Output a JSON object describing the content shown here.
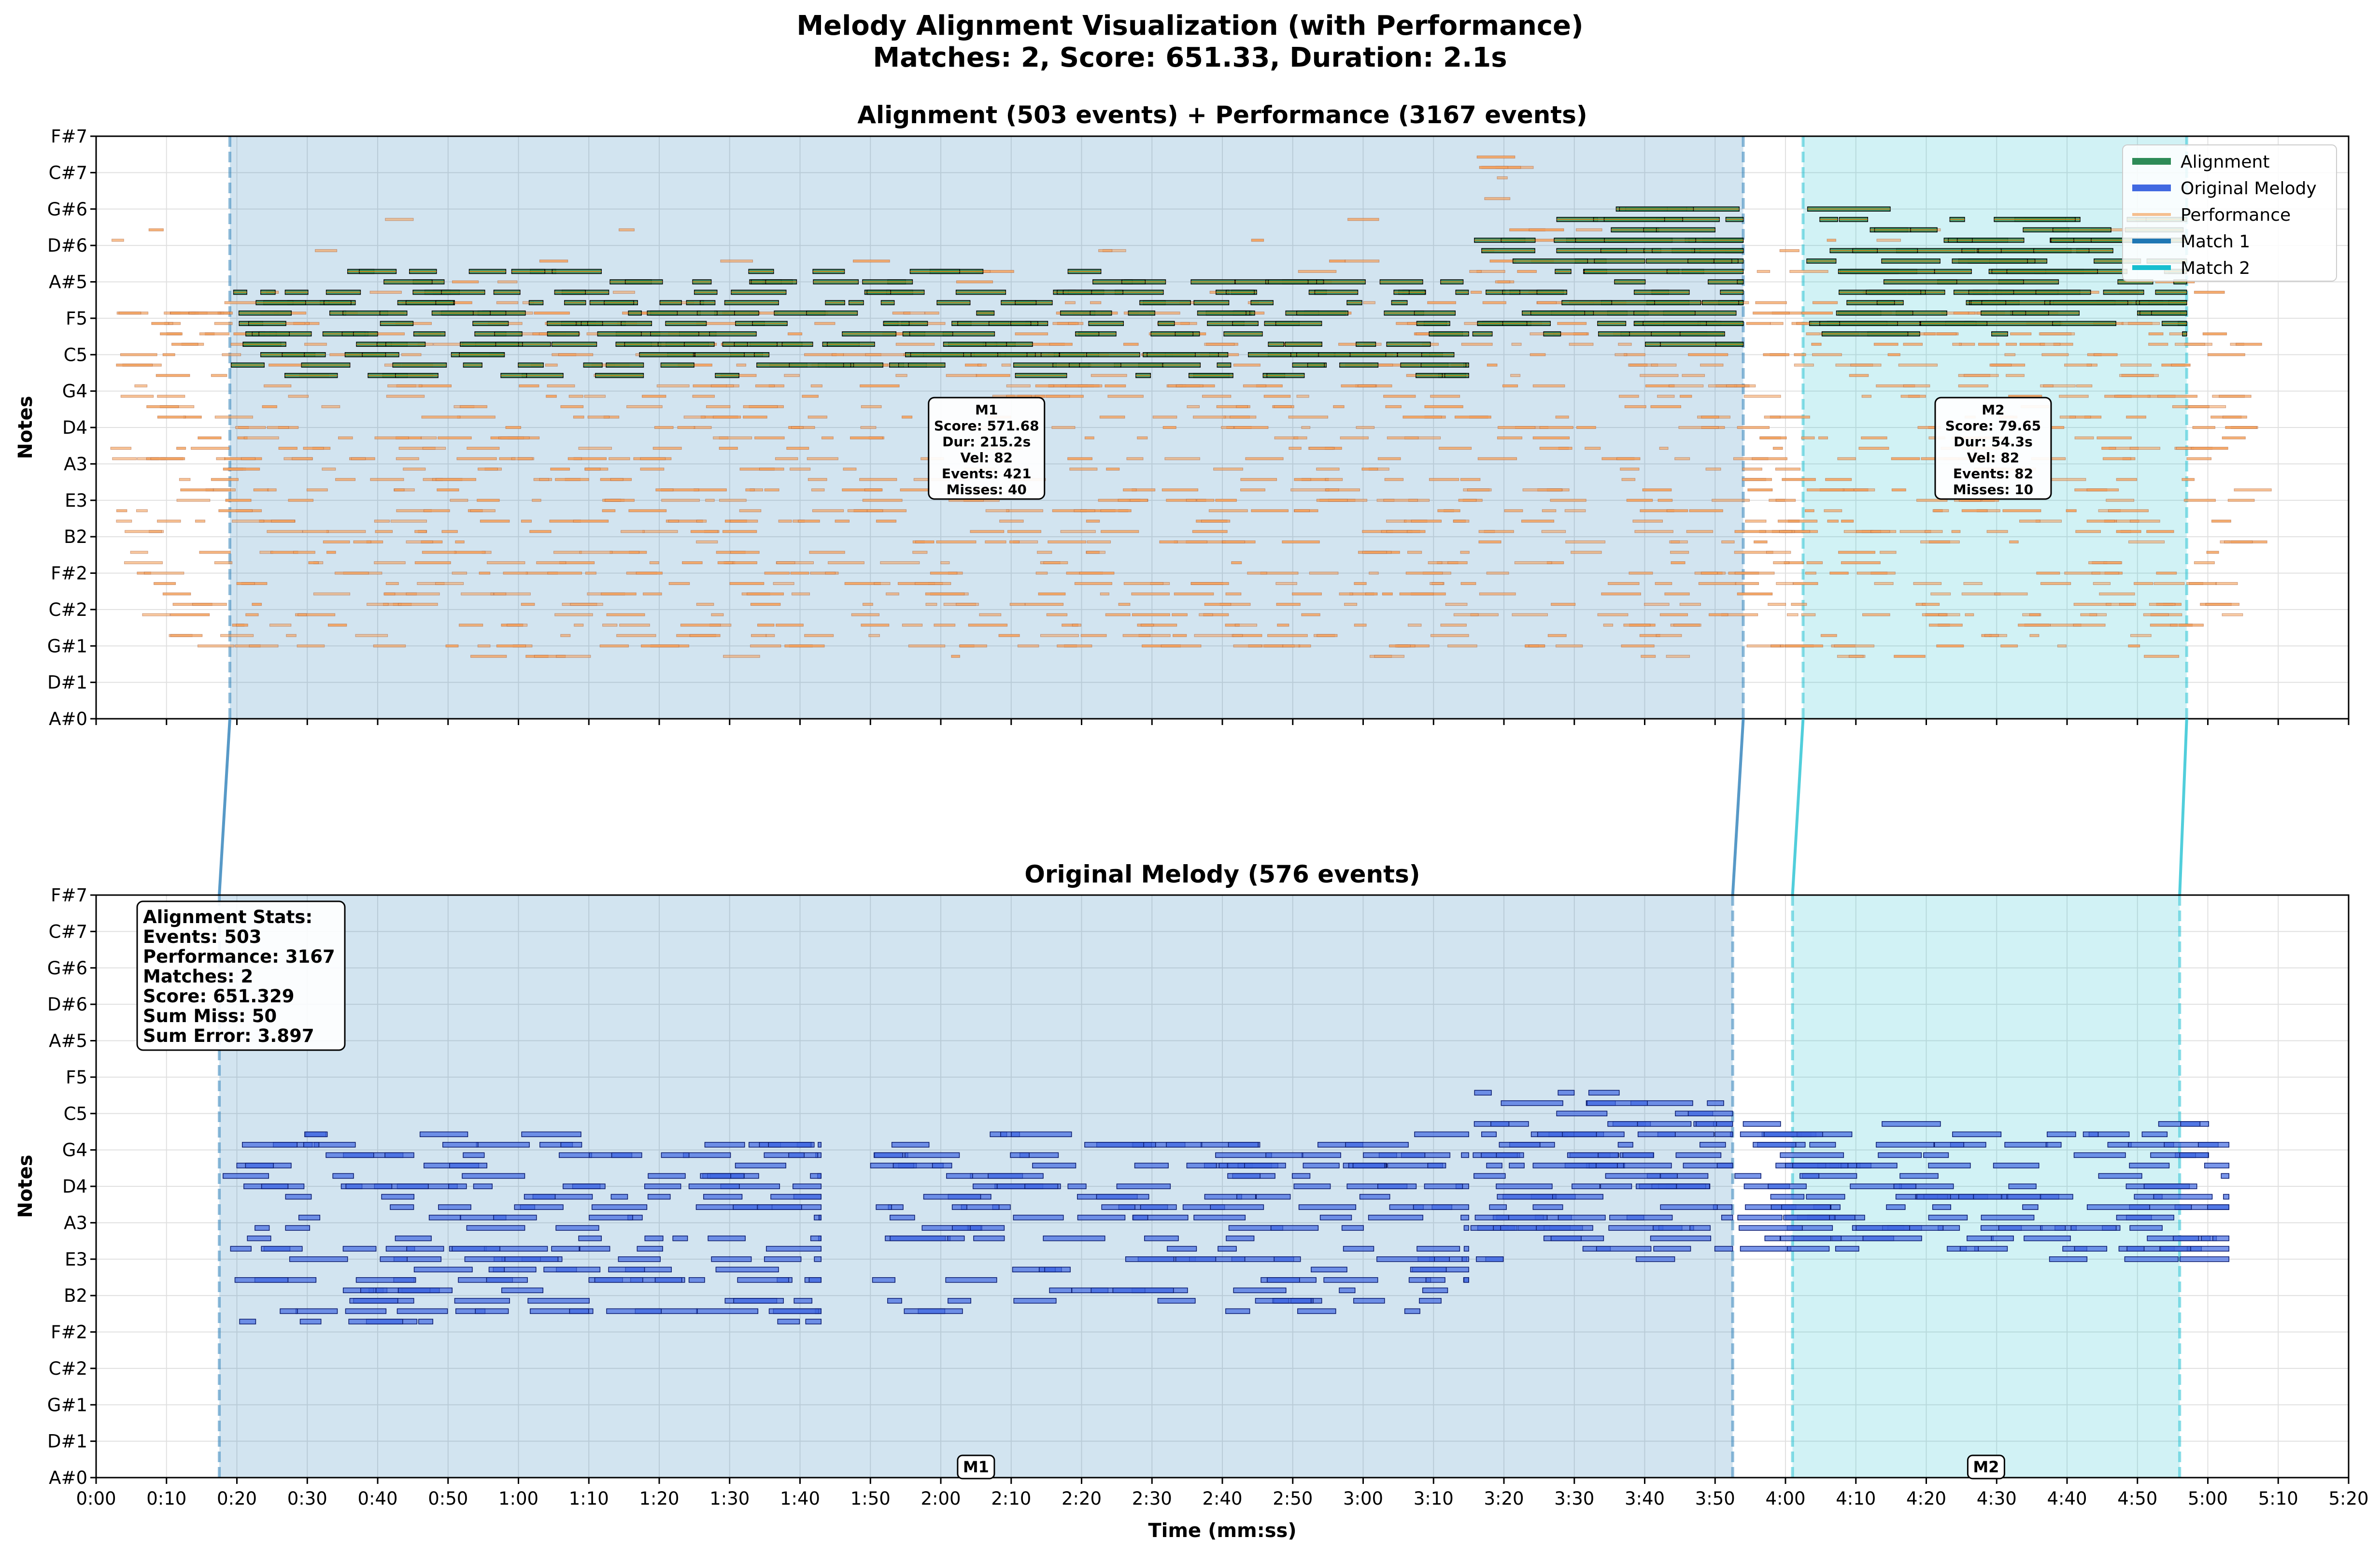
{
  "figure": {
    "title_line1": "Melody Alignment Visualization (with Performance)",
    "title_line2": "Matches: 2, Score: 651.33, Duration: 2.1s"
  },
  "colors": {
    "alignment": "#2e8b57",
    "original": "#4169e1",
    "performance": "#f4a460",
    "match1": "#1f77b4",
    "match2": "#17becf",
    "grid": "#e0e0e0"
  },
  "chart_data": [
    {
      "type": "scatter",
      "title": "Alignment (503 events) + Performance (3167 events)",
      "xlabel": "",
      "ylabel": "Notes",
      "xlim": [
        0,
        320
      ],
      "ylim_midi": [
        46,
        102
      ],
      "x_unit": "seconds (ticks printed as mm:ss)",
      "xticks": [
        "0:00",
        "0:10",
        "0:20",
        "0:30",
        "0:40",
        "0:50",
        "1:00",
        "1:10",
        "1:20",
        "1:30",
        "1:40",
        "1:50",
        "2:00",
        "2:10",
        "2:20",
        "2:30",
        "2:40",
        "2:50",
        "3:00",
        "3:10",
        "3:20",
        "3:30",
        "3:40",
        "3:50",
        "4:00",
        "4:10",
        "4:20",
        "4:30",
        "4:40",
        "4:50",
        "5:00",
        "5:10",
        "5:20"
      ],
      "xticks_shown": false,
      "yticks": [
        "A#0",
        "D#1",
        "G#1",
        "C#2",
        "F#2",
        "B2",
        "E3",
        "A3",
        "D4",
        "G4",
        "C5",
        "F5",
        "A#5",
        "D#6",
        "G#6",
        "C#7",
        "F#7"
      ],
      "grid": true,
      "legend_position": "upper right",
      "legend": [
        "Alignment",
        "Original Melody",
        "Performance",
        "Match 1",
        "Match 2"
      ],
      "match_regions": [
        {
          "name": "Match 1",
          "x_start": 19,
          "x_end": 234
        },
        {
          "name": "Match 2",
          "x_start": 242.5,
          "x_end": 297
        }
      ],
      "annotations": [
        {
          "label": "M1",
          "lines": [
            "M1",
            "Score: 571.68",
            "Dur: 215.2s",
            "Vel: 82",
            "Events: 421",
            "Misses: 40"
          ],
          "x": 126.5,
          "y_midi": 72
        },
        {
          "label": "M2",
          "lines": [
            "M2",
            "Score: 79.65",
            "Dur: 54.3s",
            "Vel: 82",
            "Events: 82",
            "Misses: 10"
          ],
          "x": 269.5,
          "y_midi": 72
        }
      ],
      "series": [
        {
          "name": "Alignment",
          "note_events": {
            "x_range_s": [
              19,
              234,
              242.5,
              297
            ],
            "pitch_range_midi": [
              78,
              95
            ],
            "count": 503
          }
        },
        {
          "name": "Performance",
          "note_events": {
            "x_range_s": [
              2,
              304
            ],
            "pitch_range_midi": [
              50,
              102
            ],
            "count": 3167
          }
        }
      ]
    },
    {
      "type": "scatter",
      "title": "Original Melody (576 events)",
      "xlabel": "Time (mm:ss)",
      "ylabel": "Notes",
      "xlim": [
        0,
        320
      ],
      "ylim_midi": [
        46,
        102
      ],
      "x_unit": "seconds (ticks printed as mm:ss)",
      "xticks": [
        "0:00",
        "0:10",
        "0:20",
        "0:30",
        "0:40",
        "0:50",
        "1:00",
        "1:10",
        "1:20",
        "1:30",
        "1:40",
        "1:50",
        "2:00",
        "2:10",
        "2:20",
        "2:30",
        "2:40",
        "2:50",
        "3:00",
        "3:10",
        "3:20",
        "3:30",
        "3:40",
        "3:50",
        "4:00",
        "4:10",
        "4:20",
        "4:30",
        "4:40",
        "4:50",
        "5:00",
        "5:10",
        "5:20"
      ],
      "yticks": [
        "A#0",
        "D#1",
        "G#1",
        "C#2",
        "F#2",
        "B2",
        "E3",
        "A3",
        "D4",
        "G4",
        "C5",
        "F5",
        "A#5",
        "D#6",
        "G#6",
        "C#7",
        "F#7"
      ],
      "grid": true,
      "match_regions": [
        {
          "name": "Match 1",
          "x_start": 17.5,
          "x_end": 232.5,
          "marker": "M1"
        },
        {
          "name": "Match 2",
          "x_start": 241,
          "x_end": 296,
          "marker": "M2"
        }
      ],
      "stats_box": {
        "heading": "Alignment Stats:",
        "lines": [
          "Events: 503",
          "Performance: 3167",
          "Matches: 2",
          "Score: 651.329",
          "Sum Miss: 50",
          "Sum Error: 3.897"
        ]
      },
      "series": [
        {
          "name": "Original Melody",
          "note_events": {
            "x_range_s": [
              17.5,
              303
            ],
            "pitch_range_midi": [
              61,
              83
            ],
            "count": 576
          }
        }
      ]
    }
  ]
}
